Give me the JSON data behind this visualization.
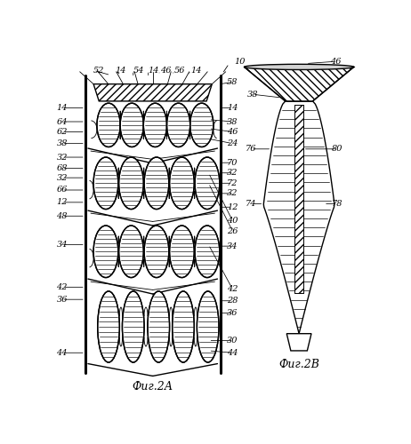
{
  "fig_width": 4.62,
  "fig_height": 5.0,
  "dpi": 100,
  "bg_color": "#ffffff",
  "line_color": "#000000",
  "fig2a_caption": "Фиг.2А",
  "fig2b_caption": "Фиг.2В",
  "lw_thick": 2.2,
  "lw_med": 1.0,
  "lw_thin": 0.6
}
